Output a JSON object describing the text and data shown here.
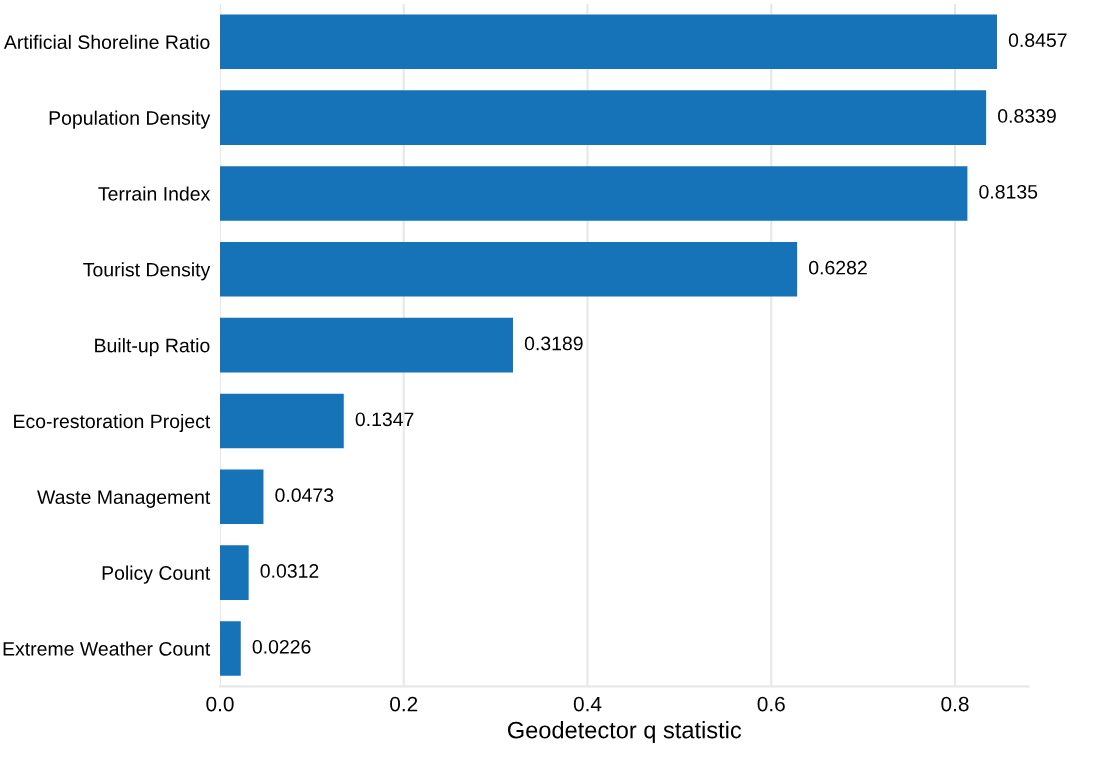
{
  "chart_data": {
    "type": "bar",
    "orientation": "horizontal",
    "xlabel": "Geodetector q statistic",
    "categories": [
      "Artificial Shoreline Ratio",
      "Population Density",
      "Terrain Index",
      "Tourist Density",
      "Built-up Ratio",
      "Eco-restoration Project",
      "Waste Management",
      "Policy Count",
      "Extreme Weather Count"
    ],
    "values": [
      0.8457,
      0.8339,
      0.8135,
      0.6282,
      0.3189,
      0.1347,
      0.0473,
      0.0312,
      0.0226
    ],
    "color": "#1673b8",
    "data_labels": true,
    "grid": "x",
    "xlim": [
      0,
      0.88
    ],
    "xticks": [
      {
        "value": 0,
        "label": "0.0"
      },
      {
        "value": 0.2,
        "label": "0.2"
      },
      {
        "value": 0.4,
        "label": "0.4"
      },
      {
        "value": 0.6,
        "label": "0.6"
      },
      {
        "value": 0.8,
        "label": "0.8"
      }
    ]
  }
}
